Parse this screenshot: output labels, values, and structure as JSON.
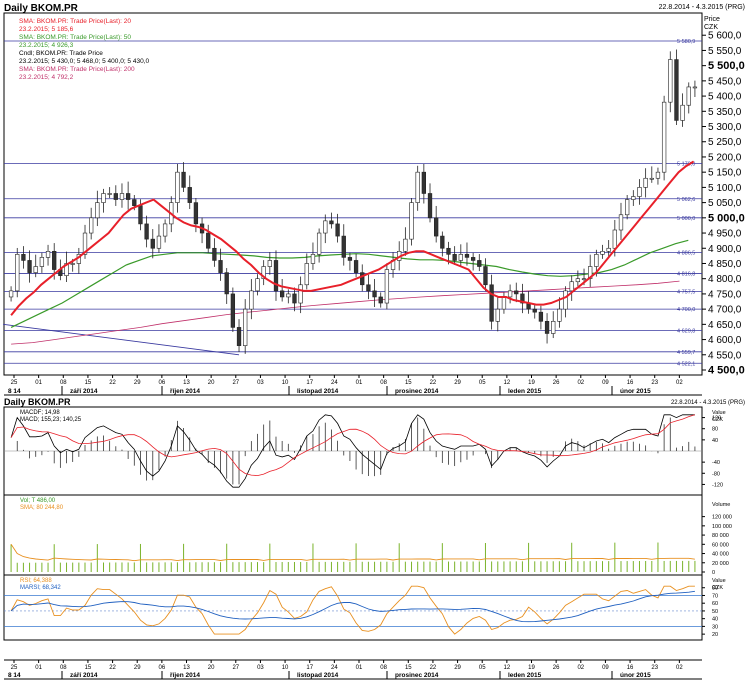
{
  "header": {
    "title": "Daily BKOM.PR",
    "range": "22.8.2014 - 4.3.2015 (PRG)"
  },
  "price_axis": {
    "title": "Price",
    "unit": "CZK"
  },
  "legend": [
    {
      "label": "SMA: BKOM.PR: Trade Price(Last): 20",
      "value": "23.2.2015; 5 185,6",
      "color": "#e8202a"
    },
    {
      "label": "SMA: BKOM.PR: Trade Price(Last): 50",
      "value": "23.2.2015; 4 926,3",
      "color": "#3a9a2a"
    },
    {
      "label": "Cndl; BKOM.PR: Trade Price",
      "value": "23.2.2015; 5 430,0; 5 468,0; 5 400,0; 5 430,0",
      "color": "#000000"
    },
    {
      "label": "SMA: BKOM.PR: Trade Price(Last): 200",
      "value": "23.2.2015; 4 792,2",
      "color": "#c0306a"
    }
  ],
  "panel2": {
    "title": "Daily BKOM.PR",
    "range": "22.8.2014 - 4.3.2015 (PRG)",
    "legend": [
      {
        "label": "MACDF; 14,98",
        "color": "#000000"
      },
      {
        "label": "MACD; 155,23; 140,25",
        "color": "#e8202a"
      }
    ],
    "axis": [
      "Value",
      "CZK"
    ],
    "ticks": [
      "120",
      "80",
      "40",
      "-40",
      "-80",
      "-120"
    ]
  },
  "panel3": {
    "legend": [
      {
        "label": "Vol; T 486,00",
        "color": "#3a9a2a"
      },
      {
        "label": "SMA; 80 244,80",
        "color": "#e89020"
      }
    ],
    "axis": [
      "Volume"
    ],
    "ticks": [
      "120 000",
      "100 000",
      "80 000",
      "60 000",
      "40 000",
      "20 000",
      "0"
    ]
  },
  "panel4": {
    "legend": [
      {
        "label": "RSI; 64,388",
        "color": "#e89020"
      },
      {
        "label": "MARSI; 68,342",
        "color": "#2060c0"
      }
    ],
    "axis": [
      "Value",
      "CZK"
    ],
    "ticks": [
      "80",
      "70",
      "60",
      "50",
      "40",
      "30",
      "20"
    ]
  },
  "time_axis": {
    "days": [
      "25",
      "01",
      "08",
      "15",
      "22",
      "29",
      "06",
      "13",
      "20",
      "27",
      "03",
      "10",
      "17",
      "24",
      "01",
      "08",
      "15",
      "22",
      "29",
      "05",
      "12",
      "19",
      "26",
      "02",
      "09",
      "16",
      "23",
      "02"
    ],
    "months": [
      {
        "label": "8 14"
      },
      {
        "label": "září 2014"
      },
      {
        "label": "říjen 2014"
      },
      {
        "label": "listopad 2014"
      },
      {
        "label": "prosinec 2014"
      },
      {
        "label": "leden 2015"
      },
      {
        "label": "únor 2015"
      }
    ],
    "days2": [
      "25",
      "01",
      "08",
      "15",
      "22",
      "29",
      "06",
      "13",
      "20",
      "27",
      "03",
      "10",
      "17",
      "24",
      "01",
      "08",
      "15",
      "22",
      "29",
      "05",
      "12",
      "19",
      "26",
      "02",
      "09",
      "16",
      "23",
      "02"
    ]
  },
  "chart_data": {
    "type": "candlestick",
    "title": "Daily BKOM.PR",
    "ylabel": "Price CZK",
    "ylim": [
      4500,
      5650
    ],
    "y_ticks": [
      4500,
      4550,
      4600,
      4650,
      4700,
      4750,
      4800,
      4850,
      4900,
      4950,
      5000,
      5050,
      5100,
      5150,
      5200,
      5250,
      5300,
      5350,
      5400,
      5450,
      5500,
      5550,
      5600
    ],
    "y_tick_labels": [
      "4 500,0",
      "4 550,0",
      "4 600,0",
      "4 650,0",
      "4 700,0",
      "4 750,0",
      "4 800,0",
      "4 850,0",
      "4 900,0",
      "4 950,0",
      "5 000,0",
      "5 050,0",
      "5 100,0",
      "5 150,0",
      "5 200,0",
      "5 250,0",
      "5 300,0",
      "5 350,0",
      "5 400,0",
      "5 450,0",
      "5 500,0",
      "5 550,0",
      "5 600,0"
    ],
    "levels": [
      {
        "value": 5580.9,
        "label": "5 580,9"
      },
      {
        "value": 5178.0,
        "label": "5 178,0"
      },
      {
        "value": 5062.6,
        "label": "5 062,6"
      },
      {
        "value": 5000.0,
        "label": "5 000,0"
      },
      {
        "value": 4886.5,
        "label": "4 886,5"
      },
      {
        "value": 4816.8,
        "label": "4 816,8"
      },
      {
        "value": 4757.5,
        "label": "4 757,5"
      },
      {
        "value": 4700.0,
        "label": "4 700,0"
      },
      {
        "value": 4629.8,
        "label": "4 629,8"
      },
      {
        "value": 4559.7,
        "label": "4 559,7"
      },
      {
        "value": 4522.1,
        "label": "4 522,1"
      }
    ],
    "closes": [
      4760,
      4880,
      4860,
      4820,
      4840,
      4870,
      4890,
      4830,
      4810,
      4850,
      4850,
      4880,
      4950,
      5000,
      5050,
      5080,
      5080,
      5060,
      5080,
      5060,
      5040,
      4980,
      4930,
      4900,
      4940,
      4980,
      5050,
      5150,
      5100,
      5050,
      4980,
      4950,
      4900,
      4860,
      4820,
      4750,
      4640,
      4580,
      4700,
      4760,
      4800,
      4840,
      4860,
      4760,
      4740,
      4750,
      4720,
      4780,
      4850,
      4880,
      4950,
      4990,
      4980,
      4940,
      4870,
      4860,
      4820,
      4780,
      4760,
      4740,
      4720,
      4830,
      4860,
      4890,
      4930,
      5050,
      5150,
      5080,
      5000,
      4940,
      4900,
      4880,
      4860,
      4880,
      4870,
      4860,
      4840,
      4780,
      4660,
      4700,
      4740,
      4760,
      4750,
      4720,
      4700,
      4690,
      4660,
      4620,
      4660,
      4700,
      4760,
      4790,
      4800,
      4800,
      4840,
      4880,
      4890,
      4900,
      4960,
      5010,
      5060,
      5070,
      5100,
      5130,
      5130,
      5150,
      5380,
      5520,
      5320,
      5370,
      5430,
      5430
    ],
    "sma20": [
      4680,
      4710,
      4735,
      4755,
      4780,
      4800,
      4820,
      4840,
      4855,
      4870,
      4890,
      4910,
      4930,
      4950,
      4980,
      5010,
      5030,
      5040,
      5050,
      5060,
      5040,
      5020,
      5000,
      4985,
      4975,
      4970,
      4960,
      4945,
      4930,
      4910,
      4890,
      4865,
      4845,
      4820,
      4800,
      4785,
      4775,
      4770,
      4765,
      4760,
      4760,
      4765,
      4770,
      4775,
      4780,
      4790,
      4800,
      4810,
      4820,
      4830,
      4845,
      4860,
      4875,
      4885,
      4890,
      4890,
      4880,
      4870,
      4860,
      4850,
      4840,
      4830,
      4800,
      4770,
      4750,
      4740,
      4740,
      4730,
      4725,
      4720,
      4715,
      4715,
      4720,
      4730,
      4740,
      4760,
      4780,
      4800,
      4820,
      4850,
      4880,
      4910,
      4940,
      4970,
      5000,
      5030,
      5060,
      5090,
      5120,
      5150,
      5170,
      5185
    ],
    "sma50": [
      4640,
      4660,
      4680,
      4700,
      4720,
      4745,
      4770,
      4795,
      4820,
      4845,
      4860,
      4875,
      4880,
      4885,
      4885,
      4885,
      4882,
      4880,
      4878,
      4875,
      4870,
      4868,
      4868,
      4870,
      4875,
      4878,
      4880,
      4882,
      4880,
      4875,
      4870,
      4865,
      4862,
      4862,
      4860,
      4855,
      4850,
      4845,
      4840,
      4830,
      4822,
      4815,
      4810,
      4808,
      4810,
      4815,
      4820,
      4830,
      4845,
      4865,
      4885,
      4900,
      4915,
      4926
    ],
    "sma200": [
      4585,
      4590,
      4600,
      4610,
      4620,
      4630,
      4640,
      4652,
      4662,
      4672,
      4682,
      4690,
      4697,
      4705,
      4712,
      4718,
      4724,
      4730,
      4735,
      4740,
      4744,
      4748,
      4752,
      4756,
      4760,
      4764,
      4768,
      4772,
      4776,
      4780,
      4785,
      4792
    ],
    "trendline": [
      [
        0,
        4650
      ],
      [
        37,
        4550
      ]
    ]
  }
}
